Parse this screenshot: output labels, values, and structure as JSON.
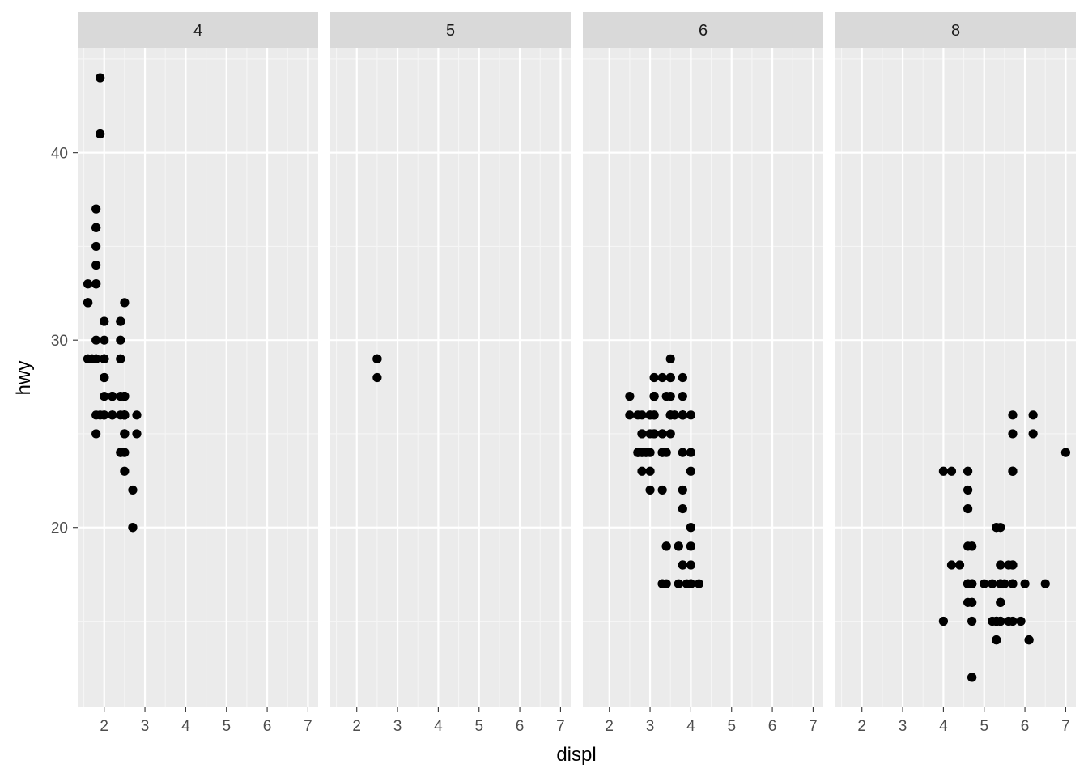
{
  "chart_data": {
    "type": "scatter",
    "xlabel": "displ",
    "ylabel": "hwy",
    "xlim": [
      1.35,
      7.25
    ],
    "ylim": [
      10.4,
      45.6
    ],
    "x_ticks": [
      2,
      3,
      4,
      5,
      6,
      7
    ],
    "y_ticks": [
      20,
      30,
      40
    ],
    "grid": true,
    "facet_variable": "cyl",
    "facets": [
      {
        "label": "4",
        "points": [
          [
            1.8,
            29
          ],
          [
            1.8,
            29
          ],
          [
            2.0,
            31
          ],
          [
            2.0,
            30
          ],
          [
            2.8,
            26
          ],
          [
            1.8,
            26
          ],
          [
            1.8,
            25
          ],
          [
            2.0,
            28
          ],
          [
            2.0,
            27
          ],
          [
            2.8,
            25
          ],
          [
            2.4,
            27
          ],
          [
            2.4,
            30
          ],
          [
            2.5,
            25
          ],
          [
            2.5,
            26
          ],
          [
            2.2,
            26
          ],
          [
            2.2,
            27
          ],
          [
            2.4,
            29
          ],
          [
            2.4,
            31
          ],
          [
            1.8,
            35
          ],
          [
            1.8,
            37
          ],
          [
            1.6,
            32
          ],
          [
            1.6,
            33
          ],
          [
            1.6,
            32
          ],
          [
            1.6,
            29
          ],
          [
            1.6,
            32
          ],
          [
            1.9,
            44
          ],
          [
            2.0,
            29
          ],
          [
            2.0,
            26
          ],
          [
            2.0,
            29
          ],
          [
            2.0,
            29
          ],
          [
            2.0,
            28
          ],
          [
            2.0,
            29
          ],
          [
            2.5,
            26
          ],
          [
            2.5,
            26
          ],
          [
            2.5,
            27
          ],
          [
            2.5,
            25
          ],
          [
            2.5,
            27
          ],
          [
            2.5,
            23
          ],
          [
            2.5,
            24
          ],
          [
            2.2,
            26
          ],
          [
            2.4,
            29
          ],
          [
            1.8,
            33
          ],
          [
            1.8,
            36
          ],
          [
            1.8,
            36
          ],
          [
            1.8,
            34
          ],
          [
            1.8,
            33
          ],
          [
            1.9,
            41
          ],
          [
            2.0,
            29
          ],
          [
            2.0,
            31
          ],
          [
            2.5,
            32
          ],
          [
            2.5,
            27
          ],
          [
            2.5,
            26
          ],
          [
            2.5,
            27
          ],
          [
            2.4,
            31
          ],
          [
            2.4,
            31
          ],
          [
            2.5,
            26
          ],
          [
            2.7,
            20
          ],
          [
            2.7,
            20
          ],
          [
            2.7,
            22
          ],
          [
            2.4,
            24
          ],
          [
            2.2,
            27
          ],
          [
            2.5,
            25
          ],
          [
            2.0,
            29
          ],
          [
            1.6,
            29
          ],
          [
            1.9,
            26
          ],
          [
            1.8,
            29
          ],
          [
            1.8,
            30
          ],
          [
            2.0,
            26
          ],
          [
            2.5,
            26
          ],
          [
            2.5,
            26
          ],
          [
            2.0,
            28
          ],
          [
            2.4,
            24
          ],
          [
            2.4,
            26
          ],
          [
            1.7,
            29
          ],
          [
            1.7,
            29
          ]
        ]
      },
      {
        "label": "5",
        "points": [
          [
            2.5,
            29
          ],
          [
            2.5,
            28
          ],
          [
            2.5,
            29
          ],
          [
            2.5,
            29
          ]
        ]
      },
      {
        "label": "6",
        "points": [
          [
            2.8,
            26
          ],
          [
            3.1,
            26
          ],
          [
            2.8,
            25
          ],
          [
            3.1,
            25
          ],
          [
            3.1,
            25
          ],
          [
            3.1,
            27
          ],
          [
            3.8,
            26
          ],
          [
            3.8,
            26
          ],
          [
            3.8,
            26
          ],
          [
            3.5,
            26
          ],
          [
            3.5,
            26
          ],
          [
            3.0,
            26
          ],
          [
            3.0,
            26
          ],
          [
            3.3,
            24
          ],
          [
            3.8,
            24
          ],
          [
            4.0,
            23
          ],
          [
            3.3,
            17
          ],
          [
            3.7,
            19
          ],
          [
            3.3,
            17
          ],
          [
            3.8,
            22
          ],
          [
            3.8,
            21
          ],
          [
            4.0,
            19
          ],
          [
            4.0,
            20
          ],
          [
            4.0,
            17
          ],
          [
            4.2,
            17
          ],
          [
            4.0,
            17
          ],
          [
            3.8,
            18
          ],
          [
            4.0,
            18
          ],
          [
            3.7,
            19
          ],
          [
            3.9,
            17
          ],
          [
            2.7,
            24
          ],
          [
            2.7,
            24
          ],
          [
            3.4,
            19
          ],
          [
            4.0,
            20
          ],
          [
            4.0,
            17
          ],
          [
            2.5,
            26
          ],
          [
            3.5,
            26
          ],
          [
            3.0,
            25
          ],
          [
            3.0,
            23
          ],
          [
            3.5,
            27
          ],
          [
            3.5,
            28
          ],
          [
            3.3,
            24
          ],
          [
            3.3,
            25
          ],
          [
            3.1,
            27
          ],
          [
            3.8,
            26
          ],
          [
            3.4,
            27
          ],
          [
            2.5,
            27
          ],
          [
            2.7,
            26
          ],
          [
            3.6,
            26
          ],
          [
            3.8,
            26
          ],
          [
            2.8,
            24
          ],
          [
            3.0,
            22
          ],
          [
            3.3,
            22
          ],
          [
            3.5,
            28
          ],
          [
            3.5,
            29
          ],
          [
            3.8,
            28
          ],
          [
            3.8,
            27
          ],
          [
            3.3,
            28
          ],
          [
            2.7,
            24
          ],
          [
            2.8,
            23
          ],
          [
            3.4,
            17
          ],
          [
            3.4,
            19
          ],
          [
            3.5,
            25
          ],
          [
            3.8,
            26
          ],
          [
            4.0,
            26
          ],
          [
            3.6,
            26
          ],
          [
            4.0,
            24
          ],
          [
            2.8,
            25
          ],
          [
            3.1,
            26
          ],
          [
            2.8,
            24
          ],
          [
            2.9,
            24
          ],
          [
            3.3,
            25
          ],
          [
            3.1,
            28
          ],
          [
            3.0,
            24
          ],
          [
            3.3,
            25
          ],
          [
            3.4,
            24
          ],
          [
            3.8,
            18
          ],
          [
            2.9,
            24
          ],
          [
            3.1,
            27
          ],
          [
            3.7,
            17
          ]
        ]
      },
      {
        "label": "8",
        "points": [
          [
            4.2,
            23
          ],
          [
            5.7,
            18
          ],
          [
            5.3,
            20
          ],
          [
            5.3,
            15
          ],
          [
            5.3,
            20
          ],
          [
            5.7,
            17
          ],
          [
            6.0,
            17
          ],
          [
            5.7,
            18
          ],
          [
            6.5,
            17
          ],
          [
            5.7,
            26
          ],
          [
            5.7,
            25
          ],
          [
            6.2,
            26
          ],
          [
            6.2,
            25
          ],
          [
            7.0,
            24
          ],
          [
            5.3,
            15
          ],
          [
            5.3,
            14
          ],
          [
            5.3,
            14
          ],
          [
            5.3,
            15
          ],
          [
            4.7,
            17
          ],
          [
            4.7,
            17
          ],
          [
            4.7,
            16
          ],
          [
            5.2,
            17
          ],
          [
            5.2,
            15
          ],
          [
            5.7,
            17
          ],
          [
            5.9,
            15
          ],
          [
            4.7,
            12
          ],
          [
            4.7,
            17
          ],
          [
            4.7,
            17
          ],
          [
            4.7,
            12
          ],
          [
            4.6,
            17
          ],
          [
            5.4,
            15
          ],
          [
            5.4,
            16
          ],
          [
            5.4,
            17
          ],
          [
            4.0,
            15
          ],
          [
            4.6,
            17
          ],
          [
            5.0,
            17
          ],
          [
            5.4,
            15
          ],
          [
            5.4,
            16
          ],
          [
            4.6,
            19
          ],
          [
            4.6,
            16
          ],
          [
            4.6,
            17
          ],
          [
            5.4,
            17
          ],
          [
            4.6,
            22
          ],
          [
            4.6,
            23
          ],
          [
            5.4,
            18
          ],
          [
            5.4,
            18
          ],
          [
            5.4,
            17
          ],
          [
            6.1,
            14
          ],
          [
            4.7,
            17
          ],
          [
            4.7,
            19
          ],
          [
            4.7,
            16
          ],
          [
            5.7,
            23
          ],
          [
            6.1,
            14
          ],
          [
            5.7,
            23
          ],
          [
            4.2,
            18
          ],
          [
            4.4,
            18
          ],
          [
            4.7,
            19
          ],
          [
            4.7,
            15
          ],
          [
            5.6,
            15
          ],
          [
            5.5,
            17
          ],
          [
            4.6,
            21
          ],
          [
            5.4,
            20
          ],
          [
            5.4,
            16
          ],
          [
            4.7,
            17
          ],
          [
            4.6,
            17
          ],
          [
            5.7,
            15
          ],
          [
            5.6,
            18
          ],
          [
            4.0,
            23
          ]
        ]
      }
    ]
  }
}
